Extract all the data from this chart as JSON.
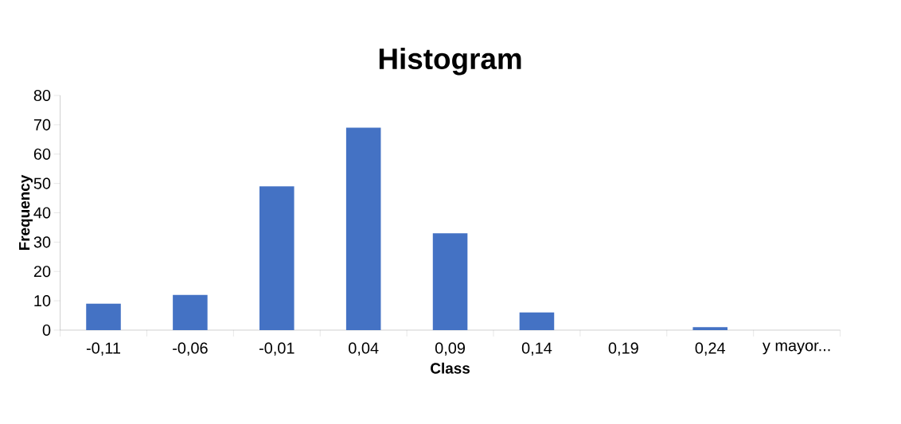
{
  "chart_data": {
    "type": "bar",
    "title": "Histogram",
    "xlabel": "Class",
    "ylabel": "Frequency",
    "categories": [
      "-0,11",
      "-0,06",
      "-0,01",
      "0,04",
      "0,09",
      "0,14",
      "0,19",
      "0,24",
      "y mayor..."
    ],
    "values": [
      9,
      12,
      49,
      69,
      33,
      6,
      0,
      1,
      0
    ],
    "color": "#4472c4",
    "ylim": [
      0,
      80
    ],
    "yticks": [
      0,
      10,
      20,
      30,
      40,
      50,
      60,
      70,
      80
    ]
  }
}
